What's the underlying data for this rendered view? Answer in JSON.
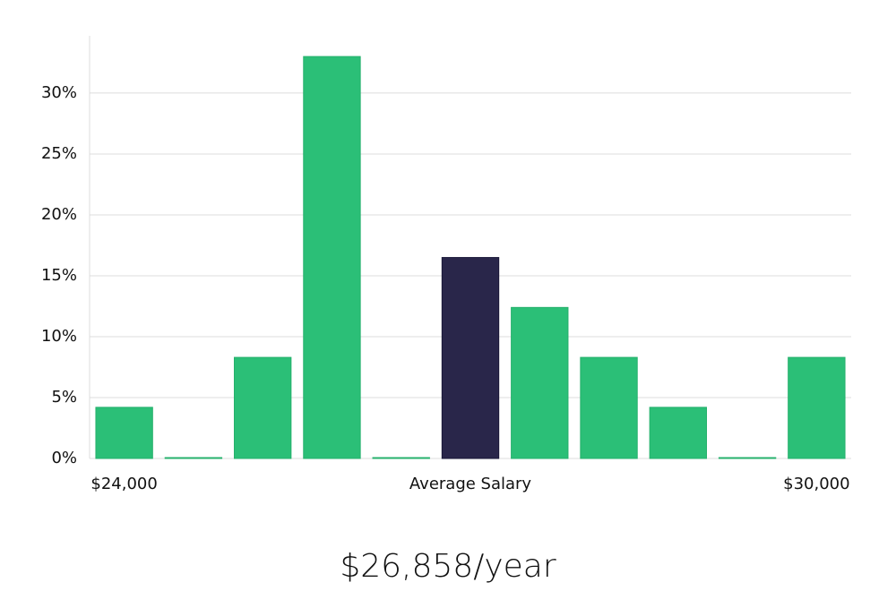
{
  "chart_data": {
    "type": "bar",
    "categories": [
      "$24,000",
      null,
      null,
      null,
      null,
      "Average Salary",
      null,
      null,
      null,
      null,
      "$30,000"
    ],
    "values": [
      4.2,
      0,
      8.3,
      33.0,
      0,
      16.5,
      12.4,
      8.3,
      4.2,
      0,
      8.3
    ],
    "colors": [
      "#2bbf77",
      "#2bbf77",
      "#2bbf77",
      "#2bbf77",
      "#2bbf77",
      "#29264a",
      "#2bbf77",
      "#2bbf77",
      "#2bbf77",
      "#2bbf77",
      "#2bbf77"
    ],
    "ylim": [
      0,
      34.7
    ],
    "yticks": [
      {
        "value": 0,
        "label": "0%"
      },
      {
        "value": 5,
        "label": "5%"
      },
      {
        "value": 10,
        "label": "10%"
      },
      {
        "value": 15,
        "label": "15%"
      },
      {
        "value": 20,
        "label": "20%"
      },
      {
        "value": 25,
        "label": "25%"
      },
      {
        "value": 30,
        "label": "30%"
      }
    ],
    "grid": true,
    "annotation": "$26,858/year"
  }
}
